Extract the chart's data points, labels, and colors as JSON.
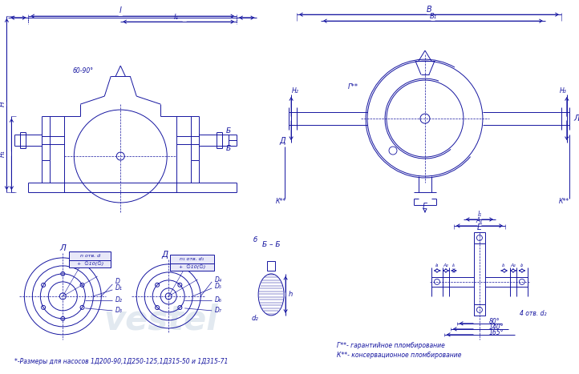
{
  "bg_color": "#ffffff",
  "line_color": "#1515a0",
  "watermark_color": "#c8d8e8",
  "text_note": "*-Размеры для насосов 1Д200-90,1Д250-125,1Д315-50 и 1Д315-71",
  "text_g": "Г**- гарантийное пломбирование",
  "text_k": "К**- консервационное пломбирование"
}
